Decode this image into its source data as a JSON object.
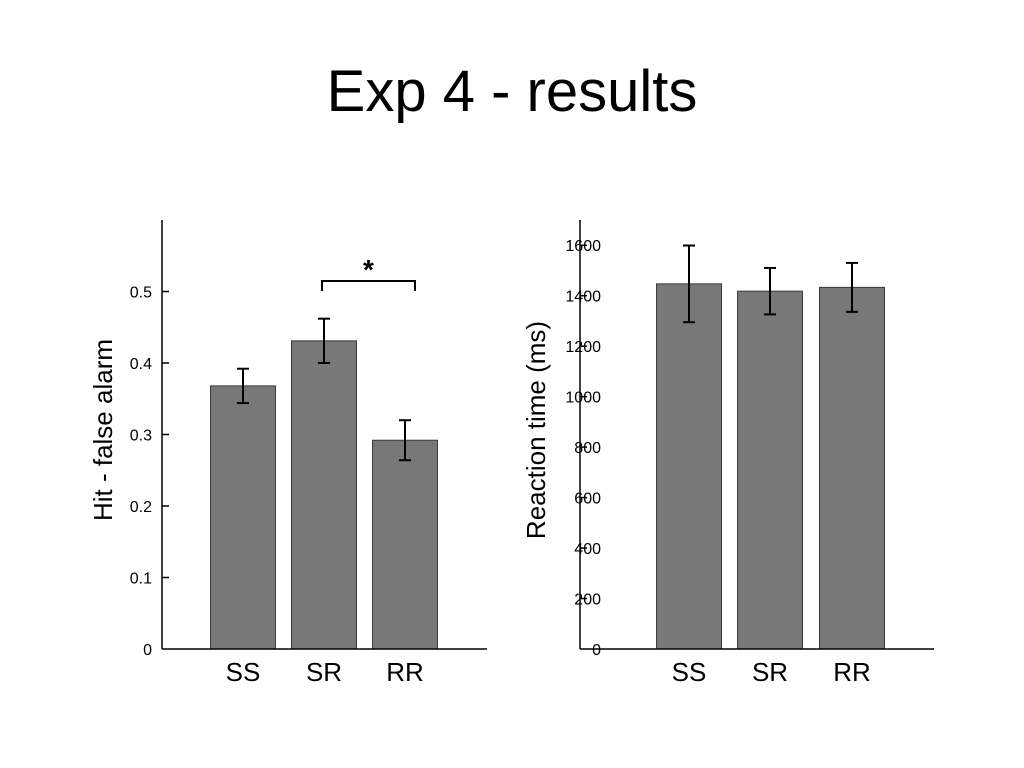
{
  "slide": {
    "title": "Exp 4 - results"
  },
  "colors": {
    "bar_fill": "#787878",
    "bar_stroke": "#3a3a3a",
    "axis": "#000000"
  },
  "chart_data": [
    {
      "type": "bar",
      "categories": [
        "SS",
        "SR",
        "RR"
      ],
      "values": [
        0.368,
        0.431,
        0.292
      ],
      "errors": [
        0.024,
        0.031,
        0.028
      ],
      "ylabel": "Hit - false alarm",
      "xlabel": "",
      "ylim": [
        0,
        0.6
      ],
      "yticks": [
        0,
        0.1,
        0.2,
        0.3,
        0.4,
        0.5
      ],
      "ytick_labels": [
        "0",
        "0.1",
        "0.2",
        "0.3",
        "0.4",
        "0.5"
      ],
      "annotations": [
        {
          "text": "*",
          "from": "SR",
          "to": "RR"
        }
      ],
      "grid": false
    },
    {
      "type": "bar",
      "categories": [
        "SS",
        "SR",
        "RR"
      ],
      "values": [
        1447,
        1418,
        1433
      ],
      "errors": [
        152,
        92,
        97
      ],
      "ylabel": "Reaction time (ms)",
      "xlabel": "",
      "ylim": [
        0,
        1700
      ],
      "yticks": [
        0,
        200,
        400,
        600,
        800,
        1000,
        1200,
        1400,
        1600
      ],
      "ytick_labels": [
        "0",
        "200",
        "400",
        "600",
        "800",
        "1000",
        "1200",
        "1400",
        "1600"
      ],
      "annotations": [],
      "grid": false
    }
  ]
}
